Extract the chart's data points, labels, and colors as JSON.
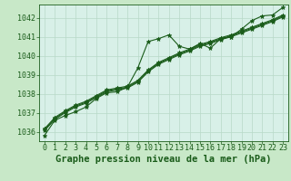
{
  "title": "Graphe pression niveau de la mer (hPa)",
  "xlabel_hours": [
    0,
    1,
    2,
    3,
    4,
    5,
    6,
    7,
    8,
    9,
    10,
    11,
    12,
    13,
    14,
    15,
    16,
    17,
    18,
    19,
    20,
    21,
    22,
    23
  ],
  "ylim": [
    1035.5,
    1042.7
  ],
  "yticks": [
    1036,
    1037,
    1038,
    1039,
    1040,
    1041,
    1042
  ],
  "background_color": "#c8e8c8",
  "plot_bg_color": "#d8f0e8",
  "grid_color": "#b8d8c8",
  "line_color": "#1a5c1a",
  "series": [
    [
      1035.8,
      1036.6,
      1036.85,
      1037.05,
      1037.3,
      1037.75,
      1038.05,
      1038.1,
      1038.35,
      1039.35,
      1040.75,
      1040.9,
      1041.1,
      1040.5,
      1040.35,
      1040.65,
      1040.4,
      1040.9,
      1041.0,
      1041.4,
      1041.85,
      1042.1,
      1042.15,
      1042.55
    ],
    [
      1036.05,
      1036.65,
      1037.0,
      1037.3,
      1037.5,
      1037.8,
      1038.1,
      1038.2,
      1038.3,
      1038.6,
      1039.15,
      1039.55,
      1039.8,
      1040.05,
      1040.25,
      1040.5,
      1040.65,
      1040.85,
      1041.0,
      1041.2,
      1041.4,
      1041.6,
      1041.8,
      1042.05
    ],
    [
      1036.1,
      1036.7,
      1037.05,
      1037.35,
      1037.55,
      1037.85,
      1038.15,
      1038.25,
      1038.35,
      1038.65,
      1039.2,
      1039.6,
      1039.85,
      1040.1,
      1040.3,
      1040.55,
      1040.7,
      1040.9,
      1041.05,
      1041.25,
      1041.45,
      1041.65,
      1041.85,
      1042.1
    ],
    [
      1036.15,
      1036.75,
      1037.1,
      1037.4,
      1037.6,
      1037.9,
      1038.2,
      1038.3,
      1038.4,
      1038.7,
      1039.25,
      1039.65,
      1039.9,
      1040.15,
      1040.35,
      1040.6,
      1040.75,
      1040.95,
      1041.1,
      1041.3,
      1041.5,
      1041.7,
      1041.9,
      1042.15
    ]
  ],
  "marker": "*",
  "marker_size": 3.5,
  "line_width": 0.8,
  "font_color": "#1a5c1a",
  "title_fontsize": 7.5,
  "tick_fontsize": 6.0
}
